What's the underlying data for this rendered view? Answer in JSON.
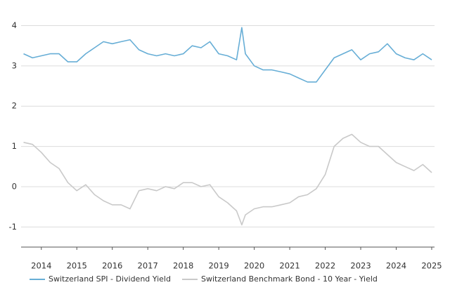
{
  "chart_data": {
    "type": "line",
    "x": [
      2013.5,
      2013.75,
      2014,
      2014.25,
      2014.5,
      2014.75,
      2015,
      2015.25,
      2015.5,
      2015.75,
      2016,
      2016.25,
      2016.5,
      2016.75,
      2017,
      2017.25,
      2017.5,
      2017.75,
      2018,
      2018.25,
      2018.5,
      2018.75,
      2019,
      2019.25,
      2019.5,
      2019.65,
      2019.75,
      2020,
      2020.25,
      2020.5,
      2020.75,
      2021,
      2021.25,
      2021.5,
      2021.75,
      2022,
      2022.25,
      2022.5,
      2022.75,
      2023,
      2023.25,
      2023.5,
      2023.75,
      2024,
      2024.25,
      2024.5,
      2024.75,
      2025
    ],
    "series": [
      {
        "name": "Switzerland SPI - Dividend Yield",
        "color": "#67aed6",
        "values": [
          3.3,
          3.2,
          3.25,
          3.3,
          3.3,
          3.1,
          3.1,
          3.3,
          3.45,
          3.6,
          3.55,
          3.6,
          3.65,
          3.4,
          3.3,
          3.25,
          3.3,
          3.25,
          3.3,
          3.5,
          3.45,
          3.6,
          3.3,
          3.25,
          3.15,
          3.95,
          3.3,
          3.0,
          2.9,
          2.9,
          2.85,
          2.8,
          2.7,
          2.6,
          2.6,
          2.9,
          3.2,
          3.3,
          3.4,
          3.15,
          3.3,
          3.35,
          3.55,
          3.3,
          3.2,
          3.15,
          3.3,
          3.15
        ]
      },
      {
        "name": "Switzerland Benchmark Bond - 10 Year - Yield",
        "color": "#c9c9c9",
        "values": [
          1.1,
          1.05,
          0.85,
          0.6,
          0.45,
          0.1,
          -0.1,
          0.05,
          -0.2,
          -0.35,
          -0.45,
          -0.45,
          -0.55,
          -0.1,
          -0.05,
          -0.1,
          0.0,
          -0.05,
          0.1,
          0.1,
          0.0,
          0.05,
          -0.25,
          -0.4,
          -0.6,
          -0.95,
          -0.7,
          -0.55,
          -0.5,
          -0.5,
          -0.45,
          -0.4,
          -0.25,
          -0.2,
          -0.05,
          0.3,
          1.0,
          1.2,
          1.3,
          1.1,
          1.0,
          1.0,
          0.8,
          0.6,
          0.5,
          0.4,
          0.55,
          0.35
        ]
      }
    ],
    "xlim": [
      2013.43,
      2025.08
    ],
    "xticks": [
      2014,
      2015,
      2016,
      2017,
      2018,
      2019,
      2020,
      2021,
      2022,
      2023,
      2024,
      2025
    ],
    "ylim": [
      -1.5,
      4.2
    ],
    "yticks": [
      -1,
      0,
      1,
      2,
      3,
      4
    ],
    "grid": true
  }
}
